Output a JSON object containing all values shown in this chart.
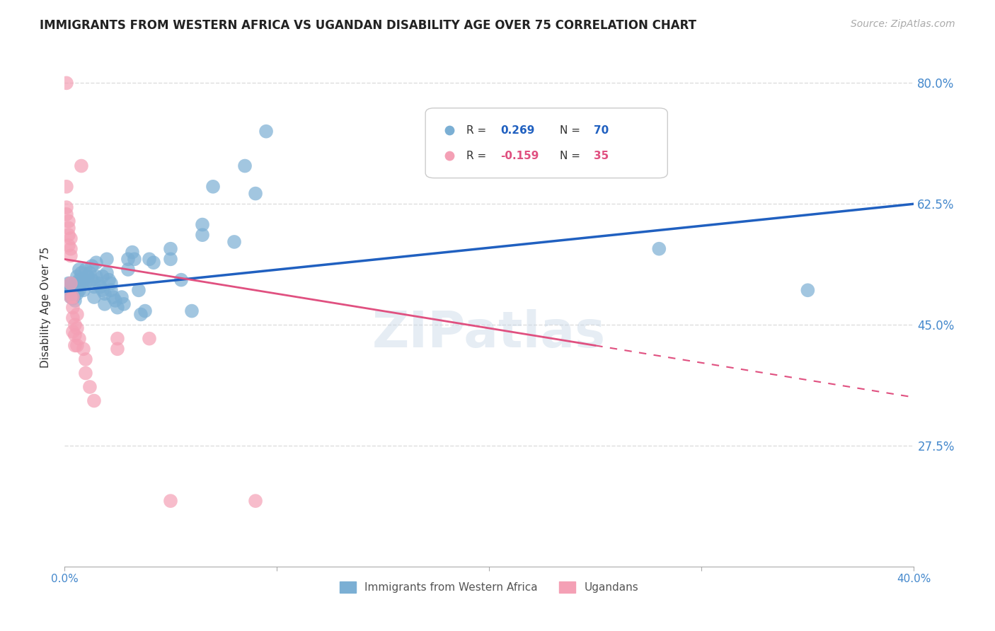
{
  "title": "IMMIGRANTS FROM WESTERN AFRICA VS UGANDAN DISABILITY AGE OVER 75 CORRELATION CHART",
  "source": "Source: ZipAtlas.com",
  "ylabel": "Disability Age Over 75",
  "ytick_labels": [
    "80.0%",
    "62.5%",
    "45.0%",
    "27.5%"
  ],
  "ytick_values": [
    0.8,
    0.625,
    0.45,
    0.275
  ],
  "xlim": [
    0.0,
    0.4
  ],
  "ylim": [
    0.1,
    0.85
  ],
  "legend_blue_r_label": "R = ",
  "legend_blue_r_val": "0.269",
  "legend_blue_n_label": "N = ",
  "legend_blue_n_val": "70",
  "legend_pink_r_label": "R = ",
  "legend_pink_r_val": "-0.159",
  "legend_pink_n_label": "N = ",
  "legend_pink_n_val": "35",
  "blue_scatter": [
    [
      0.001,
      0.505
    ],
    [
      0.002,
      0.51
    ],
    [
      0.002,
      0.495
    ],
    [
      0.003,
      0.51
    ],
    [
      0.003,
      0.5
    ],
    [
      0.003,
      0.49
    ],
    [
      0.004,
      0.505
    ],
    [
      0.004,
      0.495
    ],
    [
      0.004,
      0.488
    ],
    [
      0.005,
      0.51
    ],
    [
      0.005,
      0.5
    ],
    [
      0.005,
      0.485
    ],
    [
      0.006,
      0.52
    ],
    [
      0.006,
      0.505
    ],
    [
      0.006,
      0.495
    ],
    [
      0.007,
      0.53
    ],
    [
      0.007,
      0.515
    ],
    [
      0.007,
      0.5
    ],
    [
      0.008,
      0.525
    ],
    [
      0.008,
      0.51
    ],
    [
      0.009,
      0.515
    ],
    [
      0.009,
      0.5
    ],
    [
      0.01,
      0.53
    ],
    [
      0.01,
      0.51
    ],
    [
      0.011,
      0.52
    ],
    [
      0.012,
      0.525
    ],
    [
      0.013,
      0.535
    ],
    [
      0.013,
      0.515
    ],
    [
      0.014,
      0.505
    ],
    [
      0.014,
      0.49
    ],
    [
      0.015,
      0.54
    ],
    [
      0.015,
      0.52
    ],
    [
      0.016,
      0.51
    ],
    [
      0.017,
      0.505
    ],
    [
      0.018,
      0.52
    ],
    [
      0.018,
      0.5
    ],
    [
      0.019,
      0.495
    ],
    [
      0.019,
      0.48
    ],
    [
      0.02,
      0.545
    ],
    [
      0.02,
      0.525
    ],
    [
      0.021,
      0.515
    ],
    [
      0.022,
      0.51
    ],
    [
      0.022,
      0.5
    ],
    [
      0.023,
      0.49
    ],
    [
      0.024,
      0.485
    ],
    [
      0.025,
      0.475
    ],
    [
      0.027,
      0.49
    ],
    [
      0.028,
      0.48
    ],
    [
      0.03,
      0.545
    ],
    [
      0.03,
      0.53
    ],
    [
      0.032,
      0.555
    ],
    [
      0.033,
      0.545
    ],
    [
      0.035,
      0.5
    ],
    [
      0.036,
      0.465
    ],
    [
      0.038,
      0.47
    ],
    [
      0.04,
      0.545
    ],
    [
      0.042,
      0.54
    ],
    [
      0.05,
      0.56
    ],
    [
      0.05,
      0.545
    ],
    [
      0.055,
      0.515
    ],
    [
      0.06,
      0.47
    ],
    [
      0.065,
      0.595
    ],
    [
      0.065,
      0.58
    ],
    [
      0.07,
      0.65
    ],
    [
      0.08,
      0.57
    ],
    [
      0.085,
      0.68
    ],
    [
      0.09,
      0.64
    ],
    [
      0.095,
      0.73
    ],
    [
      0.35,
      0.5
    ],
    [
      0.28,
      0.56
    ]
  ],
  "pink_scatter": [
    [
      0.001,
      0.8
    ],
    [
      0.001,
      0.65
    ],
    [
      0.001,
      0.62
    ],
    [
      0.001,
      0.61
    ],
    [
      0.002,
      0.6
    ],
    [
      0.002,
      0.59
    ],
    [
      0.002,
      0.58
    ],
    [
      0.002,
      0.565
    ],
    [
      0.003,
      0.575
    ],
    [
      0.003,
      0.56
    ],
    [
      0.003,
      0.55
    ],
    [
      0.003,
      0.51
    ],
    [
      0.003,
      0.49
    ],
    [
      0.004,
      0.49
    ],
    [
      0.004,
      0.475
    ],
    [
      0.004,
      0.46
    ],
    [
      0.004,
      0.44
    ],
    [
      0.005,
      0.45
    ],
    [
      0.005,
      0.435
    ],
    [
      0.005,
      0.42
    ],
    [
      0.006,
      0.465
    ],
    [
      0.006,
      0.445
    ],
    [
      0.006,
      0.42
    ],
    [
      0.007,
      0.43
    ],
    [
      0.008,
      0.68
    ],
    [
      0.009,
      0.415
    ],
    [
      0.01,
      0.4
    ],
    [
      0.01,
      0.38
    ],
    [
      0.012,
      0.36
    ],
    [
      0.014,
      0.34
    ],
    [
      0.025,
      0.43
    ],
    [
      0.025,
      0.415
    ],
    [
      0.04,
      0.43
    ],
    [
      0.05,
      0.195
    ],
    [
      0.09,
      0.195
    ]
  ],
  "blue_line": {
    "x0": 0.0,
    "y0": 0.498,
    "x1": 0.4,
    "y1": 0.625
  },
  "pink_line_solid": {
    "x0": 0.0,
    "y0": 0.545,
    "x1": 0.25,
    "y1": 0.42
  },
  "pink_line_dashed": {
    "x0": 0.25,
    "y0": 0.42,
    "x1": 0.4,
    "y1": 0.345
  },
  "blue_color": "#7bafd4",
  "pink_color": "#f4a0b5",
  "blue_line_color": "#2060c0",
  "pink_line_color": "#e05080",
  "background_color": "#ffffff",
  "watermark": "ZIPatlas",
  "title_fontsize": 12,
  "axis_label_color": "#4488cc",
  "grid_color": "#dddddd"
}
